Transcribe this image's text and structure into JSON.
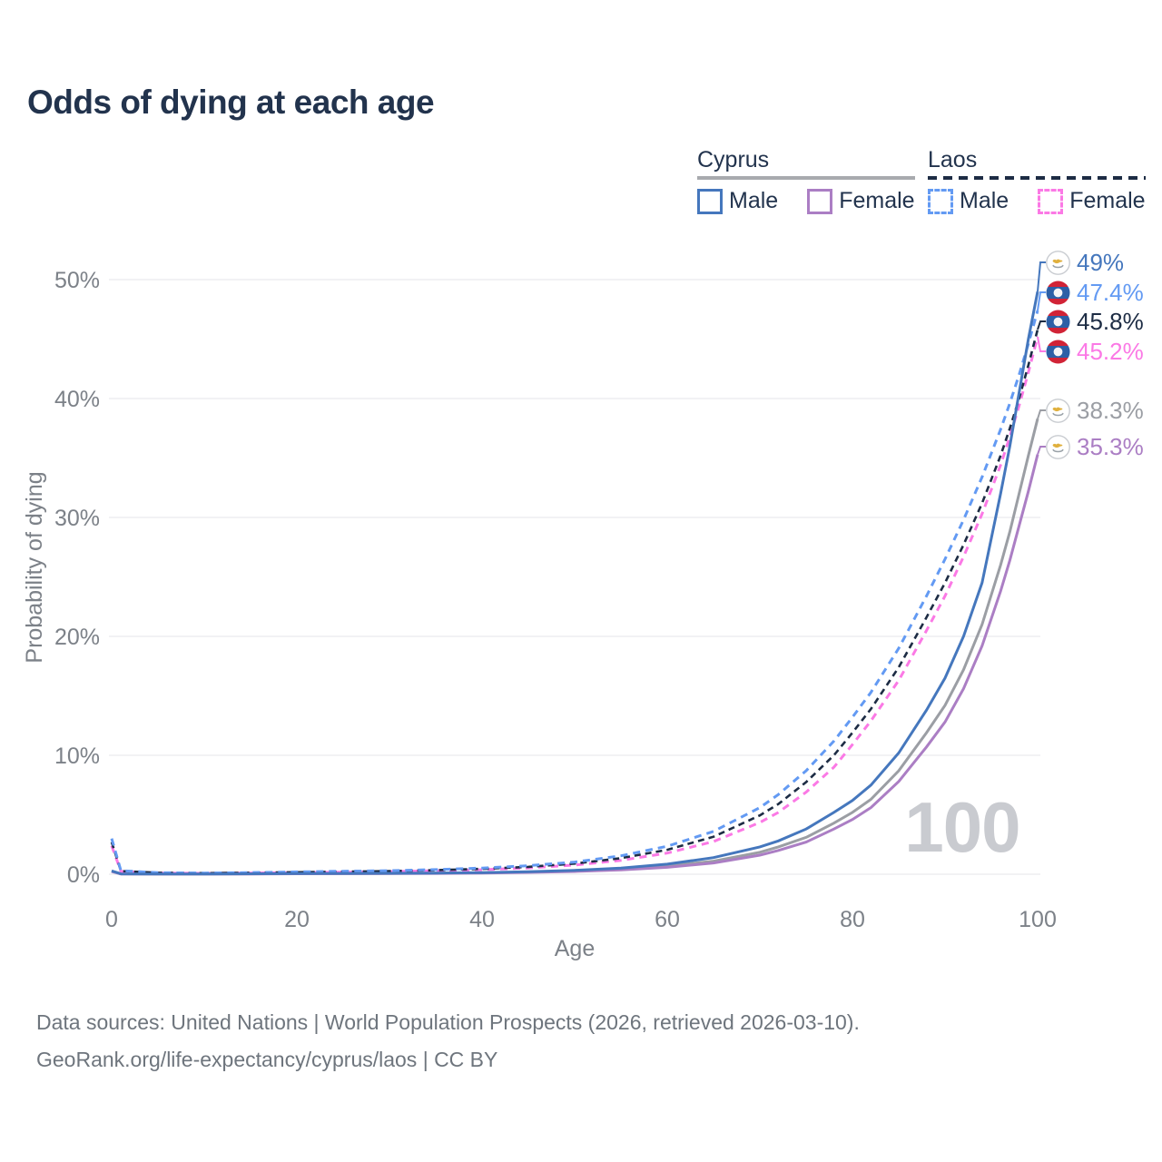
{
  "title": "Odds of dying at each age",
  "watermark": {
    "text": "100"
  },
  "legend": {
    "groups": [
      {
        "name": "Cyprus",
        "line_style": "solid",
        "underline_color": "#a8aaae",
        "items": [
          {
            "label": "Male",
            "color": "#4577bd"
          },
          {
            "label": "Female",
            "color": "#ab7ec4"
          }
        ]
      },
      {
        "name": "Laos",
        "line_style": "dashed",
        "underline_color": "#1d2c44",
        "items": [
          {
            "label": "Male",
            "color": "#639af3"
          },
          {
            "label": "Female",
            "color": "#fb79e5"
          }
        ]
      }
    ]
  },
  "footer": {
    "line1": "Data sources: United Nations | World Population Prospects (2026, retrieved 2026-03-10).",
    "line2": "GeoRank.org/life-expectancy/cyprus/laos | CC BY"
  },
  "chart_data": {
    "type": "line",
    "title": "Odds of dying at each age",
    "xlabel": "Age",
    "ylabel": "Probability of dying",
    "xlim": [
      0,
      100
    ],
    "ylim": [
      0,
      50
    ],
    "grid": "horizontal",
    "x_ticks": [
      {
        "value": 0,
        "label": "0"
      },
      {
        "value": 20,
        "label": "20"
      },
      {
        "value": 40,
        "label": "40"
      },
      {
        "value": 60,
        "label": "60"
      },
      {
        "value": 80,
        "label": "80"
      },
      {
        "value": 100,
        "label": "100"
      }
    ],
    "y_ticks": [
      {
        "value": 0,
        "label": "0%"
      },
      {
        "value": 10,
        "label": "10%"
      },
      {
        "value": 20,
        "label": "20%"
      },
      {
        "value": 30,
        "label": "30%"
      },
      {
        "value": 40,
        "label": "40%"
      },
      {
        "value": 50,
        "label": "50%"
      }
    ],
    "series": [
      {
        "id": "cyprus-total",
        "name": "Cyprus (both sexes)",
        "country": "Cyprus",
        "flag": "cyprus",
        "color": "#9b9ea4",
        "dash": false,
        "end_label": "38.3%",
        "end_value": 38.3,
        "points": [
          [
            0,
            0.25
          ],
          [
            1,
            0.027
          ],
          [
            5,
            0.017
          ],
          [
            10,
            0.017
          ],
          [
            15,
            0.03
          ],
          [
            20,
            0.05
          ],
          [
            25,
            0.06
          ],
          [
            30,
            0.07
          ],
          [
            35,
            0.09
          ],
          [
            40,
            0.12
          ],
          [
            45,
            0.18
          ],
          [
            50,
            0.27
          ],
          [
            55,
            0.43
          ],
          [
            60,
            0.69
          ],
          [
            65,
            1.1
          ],
          [
            70,
            1.85
          ],
          [
            72,
            2.3
          ],
          [
            75,
            3.1
          ],
          [
            78,
            4.3
          ],
          [
            80,
            5.2
          ],
          [
            82,
            6.3
          ],
          [
            85,
            8.7
          ],
          [
            88,
            11.9
          ],
          [
            90,
            14.2
          ],
          [
            92,
            17.2
          ],
          [
            94,
            21.0
          ],
          [
            96,
            26.0
          ],
          [
            97,
            28.8
          ],
          [
            98,
            32.0
          ],
          [
            99,
            35.2
          ],
          [
            100,
            38.3
          ]
        ]
      },
      {
        "id": "cyprus-female",
        "name": "Cyprus Female",
        "country": "Cyprus",
        "flag": "cyprus",
        "color": "#ab7ec4",
        "dash": false,
        "end_label": "35.3%",
        "end_value": 35.3,
        "points": [
          [
            0,
            0.22
          ],
          [
            1,
            0.024
          ],
          [
            5,
            0.015
          ],
          [
            10,
            0.015
          ],
          [
            15,
            0.025
          ],
          [
            20,
            0.035
          ],
          [
            25,
            0.045
          ],
          [
            30,
            0.055
          ],
          [
            35,
            0.07
          ],
          [
            40,
            0.1
          ],
          [
            45,
            0.15
          ],
          [
            50,
            0.23
          ],
          [
            55,
            0.36
          ],
          [
            60,
            0.58
          ],
          [
            65,
            0.95
          ],
          [
            70,
            1.6
          ],
          [
            72,
            2.0
          ],
          [
            75,
            2.7
          ],
          [
            78,
            3.8
          ],
          [
            80,
            4.6
          ],
          [
            82,
            5.6
          ],
          [
            85,
            7.8
          ],
          [
            88,
            10.7
          ],
          [
            90,
            12.8
          ],
          [
            92,
            15.6
          ],
          [
            94,
            19.2
          ],
          [
            96,
            23.8
          ],
          [
            97,
            26.4
          ],
          [
            98,
            29.3
          ],
          [
            99,
            32.2
          ],
          [
            100,
            35.3
          ]
        ]
      },
      {
        "id": "laos-female",
        "name": "Laos Female",
        "country": "Laos",
        "flag": "laos",
        "color": "#fb79e5",
        "dash": true,
        "end_label": "45.2%",
        "end_value": 45.2,
        "points": [
          [
            0,
            2.4
          ],
          [
            1,
            0.24
          ],
          [
            5,
            0.1
          ],
          [
            10,
            0.08
          ],
          [
            15,
            0.1
          ],
          [
            20,
            0.14
          ],
          [
            25,
            0.17
          ],
          [
            30,
            0.22
          ],
          [
            35,
            0.29
          ],
          [
            40,
            0.38
          ],
          [
            45,
            0.53
          ],
          [
            50,
            0.77
          ],
          [
            55,
            1.17
          ],
          [
            60,
            1.78
          ],
          [
            65,
            2.75
          ],
          [
            70,
            4.35
          ],
          [
            72,
            5.2
          ],
          [
            75,
            6.9
          ],
          [
            78,
            9.0
          ],
          [
            80,
            10.9
          ],
          [
            82,
            12.9
          ],
          [
            85,
            16.3
          ],
          [
            88,
            20.5
          ],
          [
            90,
            23.4
          ],
          [
            92,
            26.7
          ],
          [
            94,
            30.3
          ],
          [
            96,
            34.4
          ],
          [
            97,
            36.8
          ],
          [
            98,
            39.4
          ],
          [
            99,
            42.2
          ],
          [
            100,
            45.2
          ]
        ]
      },
      {
        "id": "laos-total",
        "name": "Laos (both sexes)",
        "country": "Laos",
        "flag": "laos",
        "color": "#1d2c44",
        "dash": true,
        "end_label": "45.8%",
        "end_value": 45.8,
        "points": [
          [
            0,
            2.7
          ],
          [
            1,
            0.27
          ],
          [
            5,
            0.12
          ],
          [
            10,
            0.09
          ],
          [
            15,
            0.12
          ],
          [
            20,
            0.17
          ],
          [
            25,
            0.21
          ],
          [
            30,
            0.26
          ],
          [
            35,
            0.34
          ],
          [
            40,
            0.45
          ],
          [
            45,
            0.62
          ],
          [
            50,
            0.89
          ],
          [
            55,
            1.35
          ],
          [
            60,
            2.05
          ],
          [
            65,
            3.15
          ],
          [
            70,
            4.95
          ],
          [
            72,
            5.9
          ],
          [
            75,
            7.75
          ],
          [
            78,
            10.0
          ],
          [
            80,
            11.9
          ],
          [
            82,
            13.9
          ],
          [
            85,
            17.4
          ],
          [
            88,
            21.6
          ],
          [
            90,
            24.5
          ],
          [
            92,
            27.7
          ],
          [
            94,
            31.2
          ],
          [
            96,
            35.2
          ],
          [
            97,
            37.5
          ],
          [
            98,
            40.0
          ],
          [
            99,
            42.8
          ],
          [
            100,
            45.8
          ]
        ]
      },
      {
        "id": "laos-male",
        "name": "Laos Male",
        "country": "Laos",
        "flag": "laos",
        "color": "#639af3",
        "dash": true,
        "end_label": "47.4%",
        "end_value": 47.4,
        "points": [
          [
            0,
            3.0
          ],
          [
            1,
            0.3
          ],
          [
            5,
            0.13
          ],
          [
            10,
            0.1
          ],
          [
            15,
            0.14
          ],
          [
            20,
            0.2
          ],
          [
            25,
            0.25
          ],
          [
            30,
            0.3
          ],
          [
            35,
            0.39
          ],
          [
            40,
            0.52
          ],
          [
            45,
            0.72
          ],
          [
            50,
            1.02
          ],
          [
            55,
            1.55
          ],
          [
            60,
            2.35
          ],
          [
            65,
            3.6
          ],
          [
            70,
            5.6
          ],
          [
            72,
            6.7
          ],
          [
            75,
            8.7
          ],
          [
            78,
            11.2
          ],
          [
            80,
            13.2
          ],
          [
            82,
            15.3
          ],
          [
            85,
            19.0
          ],
          [
            88,
            23.4
          ],
          [
            90,
            26.5
          ],
          [
            92,
            29.8
          ],
          [
            94,
            33.4
          ],
          [
            96,
            37.4
          ],
          [
            97,
            39.6
          ],
          [
            98,
            42.0
          ],
          [
            99,
            44.6
          ],
          [
            100,
            47.4
          ]
        ]
      },
      {
        "id": "cyprus-male",
        "name": "Cyprus Male",
        "country": "Cyprus",
        "flag": "cyprus",
        "color": "#4577bd",
        "dash": false,
        "end_label": "49%",
        "end_value": 49.0,
        "points": [
          [
            0,
            0.28
          ],
          [
            1,
            0.03
          ],
          [
            5,
            0.02
          ],
          [
            10,
            0.02
          ],
          [
            15,
            0.04
          ],
          [
            20,
            0.06
          ],
          [
            25,
            0.07
          ],
          [
            30,
            0.08
          ],
          [
            35,
            0.1
          ],
          [
            40,
            0.14
          ],
          [
            45,
            0.21
          ],
          [
            50,
            0.33
          ],
          [
            55,
            0.52
          ],
          [
            60,
            0.85
          ],
          [
            65,
            1.4
          ],
          [
            70,
            2.3
          ],
          [
            72,
            2.8
          ],
          [
            75,
            3.8
          ],
          [
            78,
            5.2
          ],
          [
            80,
            6.2
          ],
          [
            82,
            7.5
          ],
          [
            85,
            10.2
          ],
          [
            88,
            13.8
          ],
          [
            90,
            16.5
          ],
          [
            92,
            20.0
          ],
          [
            94,
            24.5
          ],
          [
            96,
            32.0
          ],
          [
            97,
            36.0
          ],
          [
            98,
            40.5
          ],
          [
            99,
            45.0
          ],
          [
            100,
            49.0
          ]
        ]
      }
    ]
  }
}
